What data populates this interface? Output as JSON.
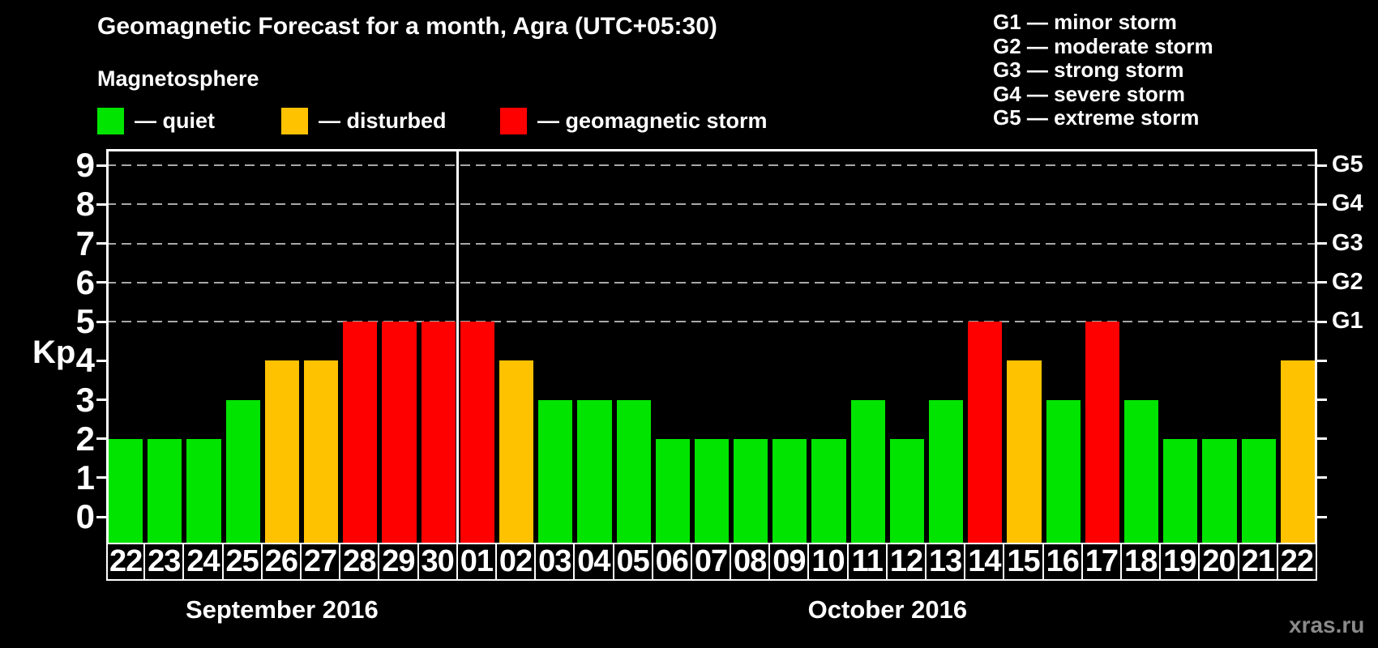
{
  "header": {
    "title": "Geomagnetic Forecast for a month, Agra (UTC+05:30)",
    "subtitle": "Magnetosphere",
    "legend": [
      {
        "name": "quiet",
        "label": "— quiet",
        "color": "#00e400"
      },
      {
        "name": "disturbed",
        "label": "— disturbed",
        "color": "#ffc200"
      },
      {
        "name": "storm",
        "label": "— geomagnetic storm",
        "color": "#ff0000"
      }
    ]
  },
  "storm_scale": [
    "G1 — minor storm",
    "G2 — moderate storm",
    "G3 — strong storm",
    "G4 — severe storm",
    "G5 — extreme storm"
  ],
  "chart_data": {
    "type": "bar",
    "title": "Geomagnetic Forecast for a month, Agra (UTC+05:30)",
    "xlabel": "",
    "ylabel": "Kp",
    "ylim": [
      -0.66,
      9.42
    ],
    "y_ticks": [
      0,
      1,
      2,
      3,
      4,
      5,
      6,
      7,
      8,
      9
    ],
    "grid_levels": [
      5,
      6,
      7,
      8,
      9
    ],
    "right_axis_labels": [
      {
        "kp": 5,
        "label": "G1"
      },
      {
        "kp": 6,
        "label": "G2"
      },
      {
        "kp": 7,
        "label": "G3"
      },
      {
        "kp": 8,
        "label": "G4"
      },
      {
        "kp": 9,
        "label": "G5"
      }
    ],
    "months": [
      {
        "label": "September 2016",
        "days": 9
      },
      {
        "label": "October 2016",
        "days": 22
      }
    ],
    "categories": [
      "22",
      "23",
      "24",
      "25",
      "26",
      "27",
      "28",
      "29",
      "30",
      "01",
      "02",
      "03",
      "04",
      "05",
      "06",
      "07",
      "08",
      "09",
      "10",
      "11",
      "12",
      "13",
      "14",
      "15",
      "16",
      "17",
      "18",
      "19",
      "20",
      "21",
      "22"
    ],
    "values": [
      2,
      2,
      2,
      3,
      4,
      4,
      5,
      5,
      5,
      5,
      4,
      3,
      3,
      3,
      2,
      2,
      2,
      2,
      2,
      3,
      2,
      3,
      5,
      4,
      3,
      5,
      3,
      2,
      2,
      2,
      4
    ],
    "statuses": [
      "quiet",
      "quiet",
      "quiet",
      "quiet",
      "disturbed",
      "disturbed",
      "storm",
      "storm",
      "storm",
      "storm",
      "disturbed",
      "quiet",
      "quiet",
      "quiet",
      "quiet",
      "quiet",
      "quiet",
      "quiet",
      "quiet",
      "quiet",
      "quiet",
      "quiet",
      "storm",
      "disturbed",
      "quiet",
      "storm",
      "quiet",
      "quiet",
      "quiet",
      "quiet",
      "disturbed"
    ],
    "status_colors": {
      "quiet": "#00e400",
      "disturbed": "#ffc200",
      "storm": "#ff0000"
    },
    "legend_position": "top-left",
    "grid": "dashed horizontal, levels 5-9 only"
  },
  "watermark": "xras.ru"
}
